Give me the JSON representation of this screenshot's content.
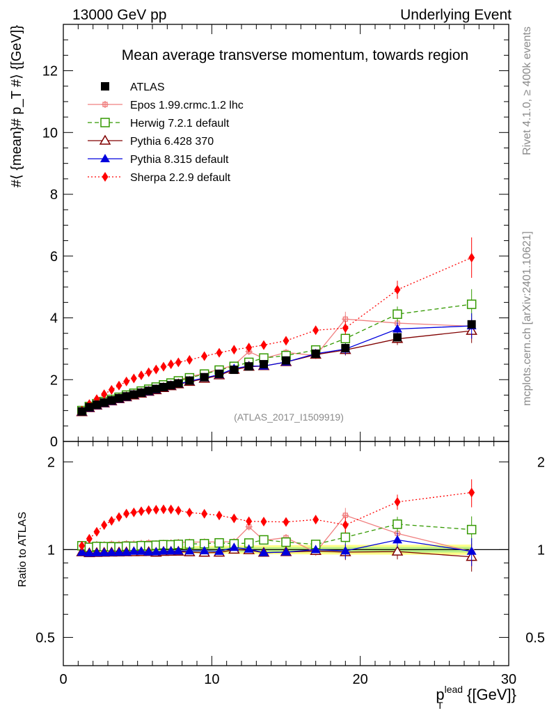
{
  "header": {
    "left": "13000 GeV pp",
    "right": "Underlying Event"
  },
  "side_labels": {
    "top": "Rivet 4.1.0, ≥ 400k events",
    "bottom": "mcplots.cern.ch [arXiv:2401.10621]"
  },
  "colors": {
    "ATLAS": "#000000",
    "Epos": "#f08080",
    "Herwig": "#339900",
    "Pythia6": "#800000",
    "Pythia8": "#0000dd",
    "Sherpa": "#ff0000",
    "band_yellow": "#ffff88",
    "band_green": "#bbee88"
  },
  "chart_data": {
    "type": "line",
    "title": "Mean average transverse momentum, towards region",
    "analysis_tag": "(ATLAS_2017_I1509919)",
    "xlabel_main": "p",
    "xlabel_sup": "lead",
    "xlabel_sub": "T",
    "xlabel_unit": "{[GeV]}",
    "ylabel_top": "#⟨ {mean}# p_T #⟩ {[GeV]}",
    "ylabel_ratio": "Ratio to ATLAS",
    "xlim": [
      0,
      30
    ],
    "ylim_top": [
      0,
      13.5
    ],
    "ylim_ratio": [
      0.4,
      2.35
    ],
    "x_ticks": [
      "0",
      "10",
      "20",
      "30"
    ],
    "y_ticks_top": [
      "0",
      "2",
      "4",
      "6",
      "8",
      "10",
      "12"
    ],
    "y_ticks_ratio": [
      "0.5",
      "1",
      "2"
    ],
    "x": [
      1.25,
      1.75,
      2.25,
      2.75,
      3.25,
      3.75,
      4.25,
      4.75,
      5.25,
      5.75,
      6.25,
      6.75,
      7.25,
      7.75,
      8.5,
      9.5,
      10.5,
      11.5,
      12.5,
      13.5,
      15,
      17,
      19,
      22.5,
      27.5
    ],
    "series": [
      {
        "name": "ATLAS",
        "key": "ATLAS",
        "marker": "square",
        "line": "none",
        "values": [
          0.97,
          1.11,
          1.19,
          1.26,
          1.33,
          1.4,
          1.46,
          1.52,
          1.58,
          1.64,
          1.7,
          1.76,
          1.82,
          1.88,
          1.97,
          2.08,
          2.19,
          2.32,
          2.43,
          2.5,
          2.62,
          2.84,
          3.02,
          3.37,
          3.79
        ]
      },
      {
        "name": "Epos 1.99.crmc.1.2 lhc",
        "key": "Epos",
        "marker": "cross",
        "line": "solid",
        "values": [
          1.0,
          1.15,
          1.24,
          1.31,
          1.39,
          1.46,
          1.53,
          1.59,
          1.66,
          1.73,
          1.78,
          1.85,
          1.92,
          1.99,
          2.09,
          2.21,
          2.33,
          2.47,
          2.91,
          2.69,
          2.88,
          2.78,
          3.96,
          3.83,
          3.73
        ]
      },
      {
        "name": "Herwig 7.2.1 default",
        "key": "Herwig",
        "marker": "open-square",
        "line": "dashed",
        "values": [
          1.0,
          1.13,
          1.22,
          1.29,
          1.36,
          1.43,
          1.5,
          1.56,
          1.63,
          1.69,
          1.76,
          1.83,
          1.89,
          1.96,
          2.06,
          2.18,
          2.31,
          2.43,
          2.56,
          2.7,
          2.78,
          2.96,
          3.33,
          4.12,
          4.44
        ]
      },
      {
        "name": "Pythia 6.428 370",
        "key": "Pythia6",
        "marker": "open-triangle",
        "line": "solid",
        "values": [
          0.95,
          1.08,
          1.16,
          1.23,
          1.3,
          1.37,
          1.43,
          1.49,
          1.55,
          1.61,
          1.66,
          1.73,
          1.79,
          1.85,
          1.93,
          2.03,
          2.14,
          2.32,
          2.42,
          2.44,
          2.57,
          2.81,
          2.96,
          3.32,
          3.58
        ]
      },
      {
        "name": "Pythia 8.315 default",
        "key": "Pythia8",
        "marker": "triangle",
        "line": "solid",
        "values": [
          0.95,
          1.08,
          1.16,
          1.23,
          1.3,
          1.37,
          1.43,
          1.5,
          1.56,
          1.61,
          1.67,
          1.74,
          1.8,
          1.86,
          1.95,
          2.06,
          2.16,
          2.36,
          2.44,
          2.44,
          2.57,
          2.84,
          2.99,
          3.64,
          3.74
        ]
      },
      {
        "name": "Sherpa 2.2.9 default",
        "key": "Sherpa",
        "marker": "diamond",
        "line": "dotted",
        "values": [
          1.0,
          1.21,
          1.37,
          1.53,
          1.67,
          1.81,
          1.94,
          2.04,
          2.14,
          2.24,
          2.33,
          2.42,
          2.5,
          2.56,
          2.64,
          2.76,
          2.87,
          2.97,
          3.04,
          3.12,
          3.26,
          3.6,
          3.67,
          4.91,
          5.95
        ]
      }
    ]
  }
}
